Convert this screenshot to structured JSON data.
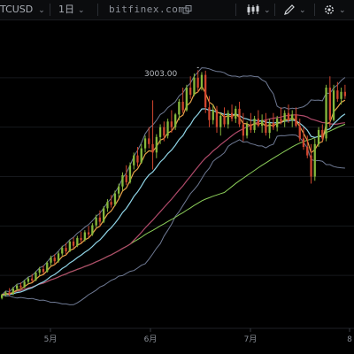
{
  "toolbar": {
    "symbol": "TCUSD",
    "timeframe": "1日",
    "brand": "bitfinex.com"
  },
  "chart_data": {
    "type": "candlestick",
    "x_labels": [
      "5月",
      "6月",
      "7月",
      "8"
    ],
    "high_label": "3003.00",
    "ylim": [
      1200,
      3300
    ],
    "series": [
      {
        "name": "",
        "kind": "bollinger-upper",
        "color": "#6f7a94"
      },
      {
        "name": "",
        "kind": "bollinger-lower",
        "color": "#6f7a94"
      },
      {
        "name": "",
        "kind": "ma-fast",
        "color": "#e8a34a"
      },
      {
        "name": "",
        "kind": "ma-mid",
        "color": "#8fd4e6"
      },
      {
        "name": "",
        "kind": "ma-slow",
        "color": "#b04a6a"
      },
      {
        "name": "",
        "kind": "ma-long",
        "color": "#8ccf5a"
      }
    ],
    "candles": [
      [
        1390,
        1420,
        1380,
        1412
      ],
      [
        1412,
        1440,
        1400,
        1430
      ],
      [
        1430,
        1460,
        1405,
        1418
      ],
      [
        1418,
        1470,
        1410,
        1455
      ],
      [
        1455,
        1490,
        1440,
        1478
      ],
      [
        1478,
        1500,
        1450,
        1465
      ],
      [
        1465,
        1520,
        1460,
        1505
      ],
      [
        1505,
        1540,
        1490,
        1528
      ],
      [
        1528,
        1560,
        1500,
        1515
      ],
      [
        1515,
        1580,
        1510,
        1570
      ],
      [
        1570,
        1610,
        1550,
        1595
      ],
      [
        1595,
        1620,
        1560,
        1575
      ],
      [
        1575,
        1650,
        1570,
        1640
      ],
      [
        1640,
        1690,
        1620,
        1675
      ],
      [
        1675,
        1700,
        1630,
        1650
      ],
      [
        1650,
        1720,
        1640,
        1705
      ],
      [
        1705,
        1760,
        1690,
        1745
      ],
      [
        1745,
        1780,
        1700,
        1720
      ],
      [
        1720,
        1800,
        1715,
        1790
      ],
      [
        1790,
        1820,
        1740,
        1760
      ],
      [
        1760,
        1830,
        1750,
        1815
      ],
      [
        1815,
        1860,
        1780,
        1800
      ],
      [
        1800,
        1870,
        1790,
        1855
      ],
      [
        1855,
        1900,
        1820,
        1840
      ],
      [
        1840,
        1920,
        1830,
        1905
      ],
      [
        1905,
        1980,
        1890,
        1960
      ],
      [
        1960,
        2010,
        1900,
        1930
      ],
      [
        1930,
        2040,
        1920,
        2025
      ],
      [
        2025,
        2090,
        2000,
        2070
      ],
      [
        2070,
        2120,
        2030,
        2050
      ],
      [
        2050,
        2150,
        2040,
        2130
      ],
      [
        2130,
        2200,
        2100,
        2180
      ],
      [
        2180,
        2280,
        2150,
        2260
      ],
      [
        2260,
        2330,
        2190,
        2210
      ],
      [
        2210,
        2350,
        2200,
        2330
      ],
      [
        2330,
        2420,
        2300,
        2400
      ],
      [
        2400,
        2460,
        2320,
        2350
      ],
      [
        2350,
        2480,
        2340,
        2450
      ],
      [
        2450,
        2540,
        2420,
        2520
      ],
      [
        2520,
        2600,
        2450,
        2480
      ],
      [
        2480,
        2790,
        2300,
        2420
      ],
      [
        2420,
        2550,
        2380,
        2530
      ],
      [
        2530,
        2620,
        2480,
        2600
      ],
      [
        2600,
        2640,
        2500,
        2540
      ],
      [
        2540,
        2660,
        2520,
        2640
      ],
      [
        2640,
        2720,
        2560,
        2600
      ],
      [
        2600,
        2700,
        2580,
        2690
      ],
      [
        2690,
        2800,
        2650,
        2780
      ],
      [
        2780,
        2880,
        2700,
        2720
      ],
      [
        2720,
        2900,
        2710,
        2880
      ],
      [
        2880,
        2960,
        2800,
        2830
      ],
      [
        2830,
        2980,
        2820,
        2950
      ],
      [
        2950,
        3003,
        2850,
        2880
      ],
      [
        2880,
        2990,
        2860,
        2970
      ],
      [
        2970,
        3000,
        2700,
        2740
      ],
      [
        2740,
        2820,
        2600,
        2650
      ],
      [
        2650,
        2760,
        2620,
        2720
      ],
      [
        2720,
        2750,
        2560,
        2600
      ],
      [
        2600,
        2700,
        2540,
        2680
      ],
      [
        2680,
        2740,
        2600,
        2620
      ],
      [
        2620,
        2720,
        2590,
        2700
      ],
      [
        2700,
        2760,
        2640,
        2660
      ],
      [
        2660,
        2750,
        2630,
        2730
      ],
      [
        2730,
        2780,
        2600,
        2620
      ],
      [
        2620,
        2700,
        2500,
        2540
      ],
      [
        2540,
        2640,
        2520,
        2620
      ],
      [
        2620,
        2700,
        2560,
        2580
      ],
      [
        2580,
        2680,
        2560,
        2660
      ],
      [
        2660,
        2720,
        2600,
        2610
      ],
      [
        2610,
        2690,
        2560,
        2650
      ],
      [
        2650,
        2700,
        2540,
        2560
      ],
      [
        2560,
        2660,
        2520,
        2630
      ],
      [
        2630,
        2700,
        2580,
        2600
      ],
      [
        2600,
        2680,
        2570,
        2660
      ],
      [
        2660,
        2740,
        2620,
        2640
      ],
      [
        2640,
        2720,
        2600,
        2700
      ],
      [
        2700,
        2760,
        2630,
        2650
      ],
      [
        2650,
        2720,
        2600,
        2690
      ],
      [
        2690,
        2740,
        2600,
        2610
      ],
      [
        2610,
        2660,
        2500,
        2520
      ],
      [
        2520,
        2600,
        2440,
        2460
      ],
      [
        2460,
        2540,
        2380,
        2400
      ],
      [
        2400,
        2480,
        2200,
        2250
      ],
      [
        2250,
        2520,
        2220,
        2480
      ],
      [
        2480,
        2600,
        2460,
        2580
      ],
      [
        2580,
        2620,
        2500,
        2520
      ],
      [
        2520,
        2900,
        2500,
        2880
      ],
      [
        2880,
        2960,
        2600,
        2650
      ],
      [
        2650,
        2900,
        2640,
        2860
      ],
      [
        2860,
        2920,
        2780,
        2800
      ],
      [
        2800,
        2880,
        2760,
        2850
      ],
      [
        2850,
        2900,
        2800,
        2820
      ]
    ]
  }
}
